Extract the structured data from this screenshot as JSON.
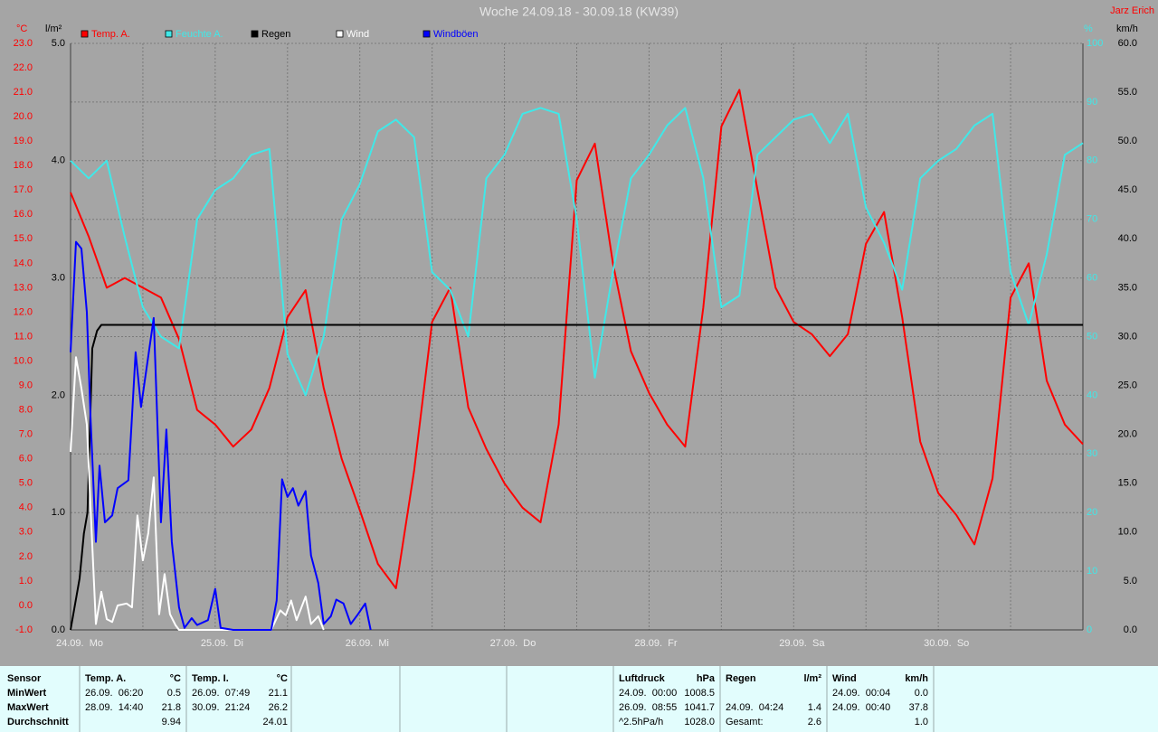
{
  "chart_data": {
    "type": "line",
    "title": "Woche 24.09.18 - 30.09.18 (KW39)",
    "author": "Jarz Erich",
    "xlim": [
      0,
      168
    ],
    "xticks": [
      {
        "value": 0,
        "label": "24.09.  Mo"
      },
      {
        "value": 24,
        "label": "25.09.  Di"
      },
      {
        "value": 48,
        "label": "26.09.  Mi"
      },
      {
        "value": 72,
        "label": "27.09.  Do"
      },
      {
        "value": 96,
        "label": "28.09.  Fr"
      },
      {
        "value": 120,
        "label": "29.09.  Sa"
      },
      {
        "value": 144,
        "label": "30.09.  So"
      }
    ],
    "ylabel": "°C",
    "ylim": [
      -1,
      23
    ],
    "yticks": [
      {
        "value": -1,
        "label": "-1.0"
      },
      {
        "value": 0,
        "label": "0.0"
      },
      {
        "value": 1,
        "label": "1.0"
      },
      {
        "value": 2,
        "label": "2.0"
      },
      {
        "value": 3,
        "label": "3.0"
      },
      {
        "value": 4,
        "label": "4.0"
      },
      {
        "value": 5,
        "label": "5.0"
      },
      {
        "value": 6,
        "label": "6.0"
      },
      {
        "value": 7,
        "label": "7.0"
      },
      {
        "value": 8,
        "label": "8.0"
      },
      {
        "value": 9,
        "label": "9.0"
      },
      {
        "value": 10,
        "label": "10.0"
      },
      {
        "value": 11,
        "label": "11.0"
      },
      {
        "value": 12,
        "label": "12.0"
      },
      {
        "value": 13,
        "label": "13.0"
      },
      {
        "value": 14,
        "label": "14.0"
      },
      {
        "value": 15,
        "label": "15.0"
      },
      {
        "value": 16,
        "label": "16.0"
      },
      {
        "value": 17,
        "label": "17.0"
      },
      {
        "value": 18,
        "label": "18.0"
      },
      {
        "value": 19,
        "label": "19.0"
      },
      {
        "value": 20,
        "label": "20.0"
      },
      {
        "value": 21,
        "label": "21.0"
      },
      {
        "value": 22,
        "label": "22.0"
      },
      {
        "value": 23,
        "label": "23.0"
      }
    ],
    "y2label": "%",
    "y2lim": [
      0,
      100
    ],
    "y2ticks": [
      0,
      10,
      20,
      30,
      40,
      50,
      60,
      70,
      80,
      90,
      100
    ],
    "y3label": "l/m²",
    "y3lim": [
      0,
      5
    ],
    "y3ticks": [
      {
        "value": 0,
        "label": "0.0"
      },
      {
        "value": 1,
        "label": "1.0"
      },
      {
        "value": 2,
        "label": "2.0"
      },
      {
        "value": 3,
        "label": "3.0"
      },
      {
        "value": 4,
        "label": "4.0"
      },
      {
        "value": 5,
        "label": "5.0"
      }
    ],
    "y4label": "km/h",
    "y4lim": [
      0,
      60
    ],
    "y4ticks": [
      {
        "value": 0,
        "label": "0.0"
      },
      {
        "value": 5,
        "label": "5.0"
      },
      {
        "value": 10,
        "label": "10.0"
      },
      {
        "value": 15,
        "label": "15.0"
      },
      {
        "value": 20,
        "label": "20.0"
      },
      {
        "value": 25,
        "label": "25.0"
      },
      {
        "value": 30,
        "label": "30.0"
      },
      {
        "value": 35,
        "label": "35.0"
      },
      {
        "value": 40,
        "label": "40.0"
      },
      {
        "value": 45,
        "label": "45.0"
      },
      {
        "value": 50,
        "label": "50.0"
      },
      {
        "value": 55,
        "label": "55.0"
      },
      {
        "value": 60,
        "label": "60.0"
      }
    ],
    "grid": true,
    "series": [
      {
        "name": "Temp. A.",
        "color": "#ff0000",
        "axis": "y",
        "x": [
          0,
          3,
          6,
          9,
          12,
          15,
          18,
          21,
          24,
          27,
          30,
          33,
          36,
          39,
          42,
          45,
          48,
          51,
          54,
          57,
          60,
          63,
          66,
          69,
          72,
          75,
          78,
          81,
          84,
          87,
          90,
          93,
          96,
          99,
          102,
          105,
          108,
          111,
          114,
          117,
          120,
          123,
          126,
          129,
          132,
          135,
          138,
          141,
          144,
          147,
          150,
          153,
          156,
          159,
          162,
          165,
          168
        ],
        "values": [
          16.9,
          15.1,
          13.0,
          13.4,
          13.0,
          12.6,
          10.9,
          8.0,
          7.4,
          6.5,
          7.2,
          8.9,
          11.8,
          12.9,
          8.9,
          6.0,
          3.9,
          1.7,
          0.7,
          5.5,
          11.6,
          13.0,
          8.1,
          6.4,
          5.0,
          4.0,
          3.4,
          7.4,
          17.4,
          18.9,
          14.0,
          10.4,
          8.7,
          7.4,
          6.5,
          12.2,
          19.6,
          21.1,
          17.0,
          13.0,
          11.6,
          11.1,
          10.2,
          11.1,
          14.8,
          16.1,
          11.8,
          6.7,
          4.6,
          3.7,
          2.5,
          5.2,
          12.6,
          14.0,
          9.2,
          7.4,
          6.6
        ]
      },
      {
        "name": "Feuchte A.",
        "color": "#40e8e8",
        "axis": "y2",
        "x": [
          0,
          3,
          6,
          9,
          12,
          15,
          18,
          21,
          24,
          27,
          30,
          33,
          36,
          39,
          42,
          45,
          48,
          51,
          54,
          57,
          60,
          63,
          66,
          69,
          72,
          75,
          78,
          81,
          84,
          87,
          90,
          93,
          96,
          99,
          102,
          105,
          108,
          111,
          114,
          117,
          120,
          123,
          126,
          129,
          132,
          135,
          138,
          141,
          144,
          147,
          150,
          153,
          156,
          159,
          162,
          165,
          168
        ],
        "values": [
          80,
          77,
          80,
          67,
          55,
          50,
          48,
          70,
          75,
          77,
          81,
          82,
          47,
          40,
          50,
          70,
          76,
          85,
          87,
          84,
          61,
          58,
          50,
          77,
          81,
          88,
          89,
          88,
          70,
          43,
          61,
          77,
          81,
          86,
          89,
          77,
          55,
          57,
          81,
          84,
          87,
          88,
          83,
          88,
          72,
          66,
          58,
          77,
          80,
          82,
          86,
          88,
          61,
          52,
          64,
          81,
          83
        ]
      },
      {
        "name": "Regen",
        "color": "#000000",
        "axis": "y3",
        "x": [
          0,
          1.5,
          2.2,
          2.8,
          3.6,
          4.4,
          5.1,
          168
        ],
        "values": [
          0,
          0.44,
          0.82,
          1.0,
          2.4,
          2.55,
          2.6,
          2.6
        ]
      },
      {
        "name": "Wind",
        "color": "#ffffff",
        "axis": "y4",
        "x": [
          0,
          0.9,
          1.8,
          2.7,
          3.3,
          4.2,
          5.1,
          6.0,
          6.9,
          7.8,
          9.3,
          10.2,
          11.1,
          12.0,
          12.9,
          13.8,
          14.7,
          15.6,
          16.5,
          17.4,
          18.0,
          33.3,
          34.8,
          35.7,
          36.6,
          37.5,
          39.0,
          39.9,
          41.1,
          42.0
        ],
        "values": [
          18.2,
          27.9,
          24.7,
          21.0,
          12.7,
          0.6,
          3.9,
          1.1,
          0.8,
          2.5,
          2.7,
          2.3,
          11.7,
          7.1,
          9.9,
          15.6,
          1.6,
          5.7,
          1.6,
          0.5,
          0,
          0,
          2.0,
          1.5,
          3.0,
          1.0,
          3.4,
          0.6,
          1.4,
          0
        ]
      },
      {
        "name": "Windböen",
        "color": "#0000ff",
        "axis": "y4",
        "x": [
          0,
          0.9,
          1.8,
          2.7,
          3.3,
          4.2,
          4.8,
          5.7,
          6.9,
          7.8,
          9.6,
          10.8,
          11.7,
          13.8,
          15.0,
          15.9,
          16.8,
          18.0,
          18.9,
          20.1,
          21.0,
          22.8,
          24.0,
          24.9,
          27.0,
          33.3,
          34.2,
          35.1,
          36.0,
          36.9,
          37.8,
          39.0,
          39.9,
          41.1,
          42.0,
          43.2,
          44.1,
          45.3,
          46.5,
          47.7,
          48.9,
          49.8
        ],
        "values": [
          28.4,
          39.7,
          39.0,
          32.5,
          21.9,
          9.0,
          16.8,
          11.0,
          11.7,
          14.5,
          15.3,
          28.4,
          22.8,
          31.9,
          11.0,
          20.5,
          9.0,
          2.3,
          0.2,
          1.2,
          0.5,
          1.0,
          4.2,
          0.2,
          0,
          0,
          3.0,
          15.4,
          13.6,
          14.5,
          12.7,
          14.2,
          7.6,
          4.8,
          0.6,
          1.4,
          3.1,
          2.7,
          0.6,
          1.6,
          2.7,
          0
        ]
      }
    ]
  },
  "table": {
    "row_labels": [
      "Sensor",
      "MinWert",
      "MaxWert",
      "Durchschnitt"
    ],
    "groups": [
      {
        "name": "Temp. A.",
        "unit": "°C",
        "rows": [
          {
            "time": "26.09.  06:20",
            "value": "0.5"
          },
          {
            "time": "28.09.  14:40",
            "value": "21.8"
          },
          {
            "value": "9.94"
          }
        ]
      },
      {
        "name": "Temp. I.",
        "unit": "°C",
        "rows": [
          {
            "time": "26.09.  07:49",
            "value": "21.1"
          },
          {
            "time": "30.09.  21:24",
            "value": "26.2"
          },
          {
            "value": "24.01"
          }
        ]
      },
      {
        "name": "Luftdruck",
        "unit": "hPa",
        "rows": [
          {
            "time": "24.09.  00:00",
            "value": "1008.5"
          },
          {
            "time": "26.09.  08:55",
            "value": "1041.7"
          },
          {
            "time": "^2.5hPa/h",
            "value": "1028.0"
          }
        ]
      },
      {
        "name": "Regen",
        "unit": "l/m²",
        "rows": [
          null,
          {
            "time": "24.09.  04:24",
            "value": "1.4"
          },
          {
            "time": "Gesamt:",
            "value": "2.6"
          }
        ]
      },
      {
        "name": "Wind",
        "unit": "km/h",
        "rows": [
          {
            "time": "24.09.  00:04",
            "value": "0.0"
          },
          {
            "time": "24.09.  00:40",
            "value": "37.8"
          },
          {
            "value": "1.0"
          }
        ]
      }
    ]
  }
}
